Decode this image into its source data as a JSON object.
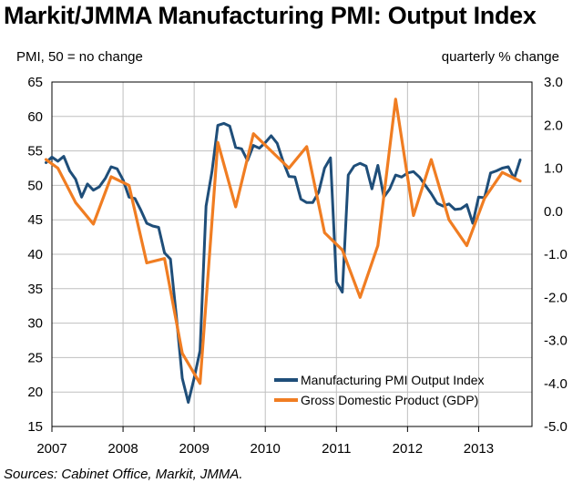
{
  "title": "Markit/JMMA Manufacturing PMI: Output Index",
  "source": "Sources: Cabinet Office, Markit, JMMA.",
  "chart_data": {
    "type": "line",
    "title": "Markit/JMMA Manufacturing PMI: Output Index",
    "left_axis_label": "PMI, 50 = no change",
    "right_axis_label": "quarterly % change",
    "x_ticks": [
      "2007",
      "2008",
      "2009",
      "2010",
      "2011",
      "2012",
      "2013"
    ],
    "x_range": [
      2007.0,
      2013.75
    ],
    "y_left_range": [
      15,
      65
    ],
    "y_left_ticks": [
      "65",
      "60",
      "55",
      "50",
      "45",
      "40",
      "35",
      "30",
      "25",
      "20",
      "15"
    ],
    "y_right_range": [
      -5.0,
      3.0
    ],
    "y_right_ticks": [
      "3.0",
      "2.0",
      "1.0",
      "0.0",
      "-1.0",
      "-2.0",
      "-3.0",
      "-4.0",
      "-5.0"
    ],
    "grid": true,
    "legend_position": "bottom-right",
    "series": [
      {
        "name": "Manufacturing PMI Output Index",
        "axis": "left",
        "color": "#1f4e79",
        "x": [
          2006.917,
          2007.0,
          2007.083,
          2007.167,
          2007.25,
          2007.333,
          2007.417,
          2007.5,
          2007.583,
          2007.667,
          2007.75,
          2007.833,
          2007.917,
          2008.0,
          2008.083,
          2008.167,
          2008.25,
          2008.333,
          2008.417,
          2008.5,
          2008.583,
          2008.667,
          2008.75,
          2008.833,
          2008.917,
          2009.0,
          2009.083,
          2009.167,
          2009.25,
          2009.333,
          2009.417,
          2009.5,
          2009.583,
          2009.667,
          2009.75,
          2009.833,
          2009.917,
          2010.0,
          2010.083,
          2010.167,
          2010.25,
          2010.333,
          2010.417,
          2010.5,
          2010.583,
          2010.667,
          2010.75,
          2010.833,
          2010.917,
          2011.0,
          2011.083,
          2011.167,
          2011.25,
          2011.333,
          2011.417,
          2011.5,
          2011.583,
          2011.667,
          2011.75,
          2011.833,
          2011.917,
          2012.0,
          2012.083,
          2012.167,
          2012.25,
          2012.333,
          2012.417,
          2012.5,
          2012.583,
          2012.667,
          2012.75,
          2012.833,
          2012.917,
          2013.0,
          2013.083,
          2013.167,
          2013.25,
          2013.333,
          2013.417,
          2013.5,
          2013.583
        ],
        "values": [
          53.3,
          54.1,
          53.5,
          54.2,
          52.1,
          50.9,
          48.3,
          50.2,
          49.3,
          49.8,
          51.0,
          52.7,
          52.4,
          50.8,
          48.3,
          48.1,
          46.4,
          44.5,
          44.1,
          43.9,
          40.2,
          39.3,
          31.0,
          22.0,
          18.5,
          22.0,
          26.0,
          47.0,
          52.0,
          58.7,
          59.0,
          58.6,
          55.5,
          55.3,
          53.6,
          55.8,
          55.4,
          56.2,
          57.2,
          56.1,
          53.5,
          51.3,
          51.2,
          48.0,
          47.5,
          47.5,
          49.0,
          52.5,
          54.0,
          36.0,
          34.5,
          51.5,
          52.8,
          53.2,
          52.8,
          49.5,
          52.9,
          48.3,
          49.5,
          51.5,
          51.2,
          51.8,
          52.0,
          51.2,
          50.0,
          48.8,
          47.4,
          47.0,
          47.3,
          46.5,
          46.6,
          47.2,
          44.5,
          48.3,
          48.2,
          51.8,
          52.1,
          52.5,
          52.7,
          51.0,
          53.7
        ]
      },
      {
        "name": "Gross Domestic Product (GDP)",
        "axis": "right",
        "color": "#f07d22",
        "x": [
          2006.917,
          2007.083,
          2007.333,
          2007.583,
          2007.833,
          2008.083,
          2008.333,
          2008.583,
          2008.833,
          2009.083,
          2009.333,
          2009.583,
          2009.833,
          2010.083,
          2010.333,
          2010.583,
          2010.833,
          2011.083,
          2011.333,
          2011.583,
          2011.833,
          2012.083,
          2012.333,
          2012.583,
          2012.833,
          2013.083,
          2013.333,
          2013.583
        ],
        "values": [
          1.2,
          1.0,
          0.2,
          -0.3,
          0.8,
          0.6,
          -1.2,
          -1.1,
          -3.3,
          -4.0,
          1.6,
          0.1,
          1.8,
          1.4,
          1.0,
          1.5,
          -0.5,
          -0.9,
          -2.0,
          -0.8,
          2.6,
          -0.1,
          1.2,
          -0.2,
          -0.8,
          0.3,
          0.9,
          0.7
        ]
      }
    ]
  }
}
